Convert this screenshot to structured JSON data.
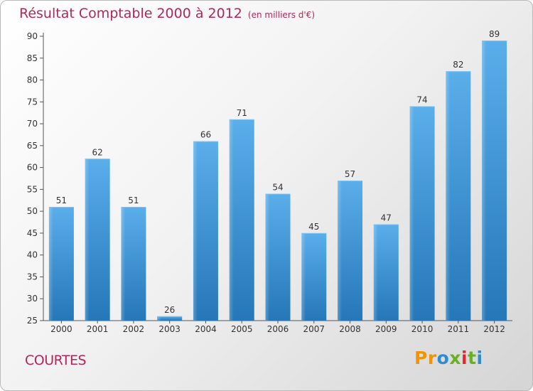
{
  "chart_data": {
    "type": "bar",
    "title": "Résultat Comptable 2000 à 2012",
    "subtitle": "(en milliers d'€)",
    "categories": [
      "2000",
      "2001",
      "2002",
      "2003",
      "2004",
      "2005",
      "2006",
      "2007",
      "2008",
      "2009",
      "2010",
      "2011",
      "2012"
    ],
    "values": [
      51,
      62,
      51,
      26,
      66,
      71,
      54,
      45,
      57,
      47,
      74,
      82,
      89
    ],
    "ylim": [
      25,
      90
    ],
    "yticks": [
      25,
      30,
      35,
      40,
      45,
      50,
      55,
      60,
      65,
      70,
      75,
      80,
      85,
      90
    ],
    "grid": false,
    "bar_color": "#3d9be0"
  },
  "footer": {
    "town": "COURTES",
    "logo": {
      "p1": "Pr",
      "p2": "o",
      "p3": "x",
      "p4": "i",
      "p5": "t",
      "p6": "i"
    }
  }
}
